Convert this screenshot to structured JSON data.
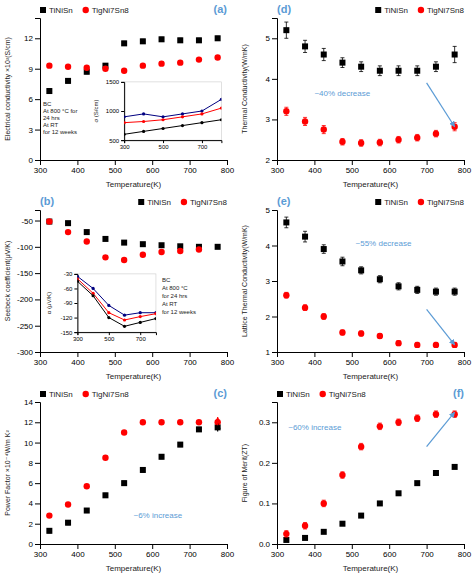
{
  "chart_data": [
    {
      "type": "scatter",
      "x_label": "Temperature(K)",
      "y_label": "Electrical conductivity ×10²(S/cm)",
      "xlim": [
        300,
        800
      ],
      "xticks": [
        300,
        400,
        500,
        600,
        700,
        800
      ],
      "ylim": [
        0,
        14
      ],
      "yticks": [
        0,
        3,
        6,
        9,
        12
      ],
      "legend": "upper left",
      "series": [
        {
          "name": "TiNiSn",
          "color": "black",
          "marker": "square",
          "x": [
            325,
            375,
            425,
            475,
            525,
            575,
            625,
            675,
            725,
            775
          ],
          "values": [
            6.8,
            7.8,
            8.7,
            9.3,
            11.5,
            11.7,
            11.9,
            11.8,
            11.8,
            12.0
          ],
          "errors": [
            0.2,
            0.2,
            0.2,
            0.2,
            0.2,
            0.2,
            0.2,
            0.2,
            0.2,
            0.2
          ]
        },
        {
          "name": "TigNi7Sn8",
          "color": "red",
          "marker": "circle",
          "x": [
            325,
            375,
            425,
            475,
            525,
            575,
            625,
            675,
            725,
            775
          ],
          "values": [
            9.3,
            9.2,
            9.1,
            9.0,
            8.8,
            9.3,
            9.5,
            9.6,
            9.9,
            10.1
          ],
          "errors": [
            0.15,
            0.15,
            0.15,
            0.15,
            0.15,
            0.15,
            0.15,
            0.15,
            0.15,
            0.15
          ]
        }
      ],
      "annotations": [
        {
          "text": "(a)",
          "color": "#5b9bd5"
        }
      ],
      "inset": {
        "type": "line",
        "y_label": "σ (S/cm)",
        "xlim": [
          300,
          800
        ],
        "xticks": [
          300,
          500,
          700
        ],
        "ylim": [
          500,
          1500
        ],
        "yticks": [
          500,
          1000,
          1500
        ],
        "series": [
          {
            "color": "navy",
            "marker": "point",
            "line_style": "solid",
            "x": [
              300,
              400,
              500,
              600,
              700,
              800
            ],
            "values": [
              900,
              950,
              900,
              950,
              1000,
              1200
            ]
          },
          {
            "color": "red",
            "marker": "point",
            "line_style": "solid",
            "x": [
              300,
              400,
              500,
              600,
              700,
              800
            ],
            "values": [
              800,
              820,
              850,
              900,
              950,
              1050
            ]
          },
          {
            "color": "black",
            "marker": "point",
            "line_style": "solid",
            "x": [
              300,
              400,
              500,
              600,
              700,
              800
            ],
            "values": [
              600,
              650,
              700,
              750,
              800,
              850
            ]
          }
        ],
        "annotations": [
          {
            "text": "BC"
          },
          {
            "text": "At 800 °C for"
          },
          {
            "text": "24 hrs"
          },
          {
            "text": "At RT"
          },
          {
            "text": "for 12 weeks"
          }
        ]
      }
    },
    {
      "type": "scatter",
      "x_label": "Temperature(K)",
      "y_label": "Seebeck coefficient(μV/K)",
      "xlim": [
        300,
        800
      ],
      "xticks": [
        300,
        400,
        500,
        600,
        700,
        800
      ],
      "ylim": [
        -300,
        -30
      ],
      "yticks": [
        -50,
        -100,
        -150,
        -200,
        -250,
        -300
      ],
      "legend": "upper right",
      "series": [
        {
          "name": "TiNiSn",
          "color": "black",
          "marker": "square",
          "x": [
            325,
            375,
            425,
            475,
            525,
            575,
            625,
            675,
            725,
            775
          ],
          "values": [
            -52,
            -55,
            -72,
            -85,
            -92,
            -95,
            -97,
            -99,
            -100,
            -100
          ]
        },
        {
          "name": "TigNi7Sn8",
          "color": "red",
          "marker": "circle",
          "x": [
            325,
            375,
            425,
            475,
            525,
            575,
            625,
            675,
            725
          ],
          "values": [
            -52,
            -72,
            -90,
            -120,
            -125,
            -115,
            -110,
            -108,
            -105
          ]
        }
      ],
      "annotations": [
        {
          "text": "(b)",
          "color": "#5b9bd5"
        }
      ],
      "inset": {
        "type": "line",
        "y_label": "α (μV/K)",
        "xlim": [
          300,
          800
        ],
        "xticks": [
          300,
          500,
          700
        ],
        "ylim": [
          -150,
          -30
        ],
        "yticks": [
          -30,
          -60,
          -90,
          -120,
          -150
        ],
        "series": [
          {
            "color": "navy",
            "marker": "point",
            "line_style": "solid",
            "x": [
              300,
              400,
              500,
              600,
              700,
              800
            ],
            "values": [
              -35,
              -60,
              -95,
              -115,
              -110,
              -110
            ]
          },
          {
            "color": "red",
            "marker": "point",
            "line_style": "solid",
            "x": [
              300,
              400,
              500,
              600,
              700,
              800
            ],
            "values": [
              -40,
              -70,
              -110,
              -125,
              -118,
              -112
            ]
          },
          {
            "color": "black",
            "marker": "point",
            "line_style": "solid",
            "x": [
              300,
              400,
              500,
              600,
              700,
              800
            ],
            "values": [
              -45,
              -75,
              -120,
              -138,
              -130,
              -122
            ]
          }
        ],
        "annotations": [
          {
            "text": "BC"
          },
          {
            "text": "At 800 °C"
          },
          {
            "text": "for 24 hrs"
          },
          {
            "text": "At RT"
          },
          {
            "text": "for 12 weeks"
          }
        ]
      }
    },
    {
      "type": "scatter",
      "x_label": "Temperature(K)",
      "y_label": "Power Factor ×10⁻⁴W/m K²",
      "xlim": [
        300,
        800
      ],
      "xticks": [
        300,
        400,
        500,
        600,
        700,
        800
      ],
      "ylim": [
        0,
        14
      ],
      "yticks": [
        0,
        2,
        4,
        6,
        8,
        10,
        12,
        14
      ],
      "legend": "upper left",
      "series": [
        {
          "name": "TiNiSn",
          "color": "black",
          "marker": "square",
          "x": [
            325,
            375,
            425,
            475,
            525,
            575,
            625,
            675,
            725,
            775
          ],
          "values": [
            1.3,
            2.1,
            3.3,
            4.8,
            6.0,
            7.3,
            8.6,
            9.8,
            11.3,
            11.5
          ],
          "errors": [
            0.2,
            0.2,
            0.2,
            0.2,
            0.2,
            0.2,
            0.2,
            0.2,
            0.2,
            0.2
          ]
        },
        {
          "name": "TigNi7Sn8",
          "color": "red",
          "marker": "circle",
          "x": [
            325,
            375,
            425,
            475,
            525,
            575,
            625,
            675,
            725,
            775
          ],
          "values": [
            2.8,
            3.9,
            5.7,
            8.5,
            11.0,
            12.0,
            12.0,
            12.0,
            12.0,
            12.0
          ],
          "errors": [
            0.15,
            0.15,
            0.15,
            0.15,
            0.15,
            0.15,
            0.15,
            0.15,
            0.15,
            0.15
          ]
        }
      ],
      "annotations": [
        {
          "text": "(c)",
          "color": "#5b9bd5"
        },
        {
          "text": "~6% increase",
          "color": "#5b9bd5"
        }
      ],
      "arrows": [
        {
          "x": 775,
          "y": 11.9,
          "x_from": 775,
          "y_from": 11.1,
          "color": "black"
        },
        {
          "x": 775,
          "y": 12.5,
          "x_from": 775,
          "y_from": 11.7,
          "color": "red"
        }
      ]
    },
    {
      "type": "scatter",
      "x_label": "Temperature(K)",
      "y_label": "Thermal Conductivity(W/mK)",
      "xlim": [
        300,
        800
      ],
      "xticks": [
        300,
        400,
        500,
        600,
        700,
        800
      ],
      "ylim": [
        2,
        5.5
      ],
      "yticks": [
        2,
        3,
        4,
        5
      ],
      "legend": "upper right",
      "series": [
        {
          "name": "TiNiSn",
          "color": "black",
          "marker": "square",
          "x": [
            325,
            375,
            425,
            475,
            525,
            575,
            625,
            675,
            725,
            775
          ],
          "values": [
            5.2,
            4.8,
            4.6,
            4.4,
            4.3,
            4.2,
            4.2,
            4.2,
            4.3,
            4.6
          ],
          "errors": [
            0.2,
            0.15,
            0.15,
            0.12,
            0.12,
            0.12,
            0.12,
            0.12,
            0.12,
            0.2
          ]
        },
        {
          "name": "TigNi7Sn8",
          "color": "red",
          "marker": "circle",
          "x": [
            325,
            375,
            425,
            475,
            525,
            575,
            625,
            675,
            725,
            775
          ],
          "values": [
            3.2,
            2.95,
            2.75,
            2.45,
            2.42,
            2.43,
            2.5,
            2.55,
            2.65,
            2.82
          ],
          "errors": [
            0.1,
            0.1,
            0.1,
            0.08,
            0.08,
            0.08,
            0.08,
            0.08,
            0.08,
            0.1
          ]
        }
      ],
      "annotations": [
        {
          "text": "(d)",
          "color": "#5b9bd5"
        },
        {
          "text": "~40% decrease",
          "color": "#5b9bd5"
        }
      ],
      "arrows": [
        {
          "x": 775,
          "y": 2.82,
          "x_from": 700,
          "y_from": 3.9,
          "color": "#5b9bd5"
        }
      ]
    },
    {
      "type": "scatter",
      "x_label": "Temperature(K)",
      "y_label": "Lattice Thermal Conductivity(W/mK)",
      "xlim": [
        300,
        800
      ],
      "xticks": [
        300,
        400,
        500,
        600,
        700,
        800
      ],
      "ylim": [
        1,
        5
      ],
      "yticks": [
        1,
        2,
        3,
        4,
        5
      ],
      "legend": "upper right",
      "series": [
        {
          "name": "TiNiSn",
          "color": "black",
          "marker": "square",
          "x": [
            325,
            375,
            425,
            475,
            525,
            575,
            625,
            675,
            725,
            775
          ],
          "values": [
            4.65,
            4.25,
            3.9,
            3.55,
            3.3,
            3.05,
            2.85,
            2.75,
            2.7,
            2.7
          ],
          "errors": [
            0.15,
            0.15,
            0.12,
            0.12,
            0.1,
            0.1,
            0.1,
            0.1,
            0.1,
            0.1
          ]
        },
        {
          "name": "TigNi7Sn8",
          "color": "red",
          "marker": "circle",
          "x": [
            325,
            375,
            425,
            475,
            525,
            575,
            625,
            675,
            725,
            775
          ],
          "values": [
            2.6,
            2.25,
            2.0,
            1.55,
            1.52,
            1.45,
            1.25,
            1.2,
            1.2,
            1.2
          ],
          "errors": [
            0.08,
            0.08,
            0.08,
            0.07,
            0.07,
            0.07,
            0.07,
            0.07,
            0.07,
            0.07
          ]
        }
      ],
      "annotations": [
        {
          "text": "(e)",
          "color": "#5b9bd5"
        },
        {
          "text": "~55% decrease",
          "color": "#5b9bd5"
        }
      ],
      "arrows": [
        {
          "x": 775,
          "y": 1.2,
          "x_from": 700,
          "y_from": 2.2,
          "color": "#5b9bd5"
        }
      ]
    },
    {
      "type": "scatter",
      "x_label": "Temperature(K)",
      "y_label": "Figure of Merit(ZT)",
      "xlim": [
        300,
        800
      ],
      "xticks": [
        300,
        400,
        500,
        600,
        700,
        800
      ],
      "ylim": [
        0,
        0.35
      ],
      "yticks": [
        {
          "value": 0,
          "label": "0.0"
        },
        0.1,
        0.2,
        0.3
      ],
      "legend": "upper left",
      "series": [
        {
          "name": "TiNiSn",
          "color": "black",
          "marker": "square",
          "x": [
            325,
            375,
            425,
            475,
            525,
            575,
            625,
            675,
            725,
            775
          ],
          "values": [
            0.01,
            0.015,
            0.03,
            0.05,
            0.07,
            0.1,
            0.125,
            0.15,
            0.175,
            0.19
          ]
        },
        {
          "name": "TigNi7Sn8",
          "color": "red",
          "marker": "circle",
          "x": [
            325,
            375,
            425,
            475,
            525,
            575,
            625,
            675,
            725,
            775
          ],
          "values": [
            0.025,
            0.045,
            0.1,
            0.17,
            0.24,
            0.29,
            0.3,
            0.31,
            0.32,
            0.32
          ],
          "errors": [
            0.008,
            0.008,
            0.008,
            0.008,
            0.008,
            0.008,
            0.008,
            0.008,
            0.008,
            0.008
          ]
        }
      ],
      "annotations": [
        {
          "text": "(f)",
          "color": "#5b9bd5"
        },
        {
          "text": "~60% increase",
          "color": "#5b9bd5"
        }
      ],
      "arrows": [
        {
          "x": 775,
          "y": 0.325,
          "x_from": 700,
          "y_from": 0.24,
          "color": "#5b9bd5"
        }
      ]
    }
  ]
}
